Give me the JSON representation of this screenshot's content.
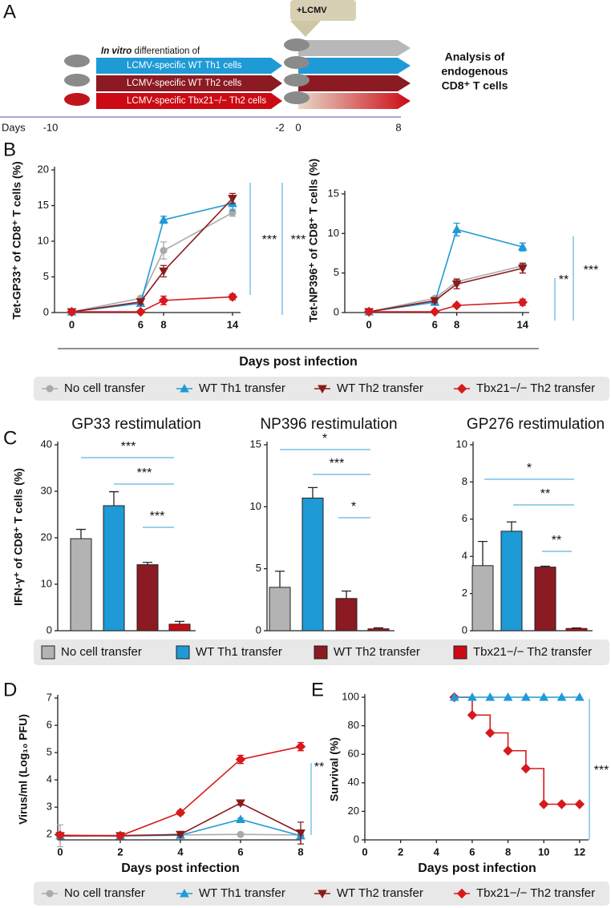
{
  "panel_labels": {
    "a": "A",
    "b": "B",
    "c": "C",
    "d": "D",
    "e": "E"
  },
  "schematic": {
    "infection": "+LCMV",
    "heading_italic": "In vitro",
    "heading": "differentiation of",
    "groups": [
      "LCMV-specific WT Th1 cells",
      "LCMV-specific WT Th2 cells",
      "LCMV-specific Tbx21−/− Th2 cells"
    ],
    "analysis": [
      "Analysis of",
      "endogenous",
      "CD8⁺ T cells"
    ],
    "days_label": "Days",
    "days": [
      -10,
      -2,
      0,
      8
    ]
  },
  "legend_c": {
    "names": [
      "No cell transfer",
      "WT Th1 transfer",
      "WT Th2 transfer",
      "Tbx21−/− Th2 transfer"
    ],
    "colors": [
      "#b3b3b3",
      "#1e9ad6",
      "#8b1a22",
      "#cc0a14"
    ]
  },
  "chart_data": [
    {
      "type": "line",
      "ylabel": "Tet-GP33⁺ of CD8⁺ T cells (%)",
      "xlabel": "Days post infection",
      "x": [
        0,
        6,
        8,
        14
      ],
      "xlim": [
        -1.5,
        14.7
      ],
      "xticks": [
        0,
        6,
        8,
        14
      ],
      "ylim": [
        0,
        20
      ],
      "yticks": [
        0,
        5,
        10,
        15,
        20
      ],
      "annotations": [
        "***",
        "***"
      ],
      "series": [
        {
          "name": "No cell transfer",
          "color": "#aaaaaa",
          "marker": "circle",
          "values": [
            0.1,
            2.0,
            8.7,
            14.0
          ],
          "errors": [
            0.05,
            0.3,
            1.2,
            0.5
          ]
        },
        {
          "name": "WT Th1 transfer",
          "color": "#1f9ad6",
          "marker": "triangle-up",
          "values": [
            0.1,
            1.3,
            13.0,
            15.3
          ],
          "errors": [
            0.05,
            0.3,
            0.5,
            1.0
          ]
        },
        {
          "name": "WT Th2 transfer",
          "color": "#8b1a1a",
          "marker": "triangle-down",
          "values": [
            0.1,
            1.5,
            5.8,
            16.0
          ],
          "errors": [
            0.05,
            0.3,
            0.8,
            0.7
          ]
        },
        {
          "name": "Tbx21−/− Th2 transfer",
          "color": "#d7191c",
          "marker": "diamond",
          "values": [
            0.1,
            0.1,
            1.7,
            2.2
          ],
          "errors": [
            0.05,
            0.1,
            0.6,
            0.4
          ]
        }
      ]
    },
    {
      "type": "line",
      "ylabel": "Tet-NP396⁺ of CD8⁺ T cells (%)",
      "x": [
        0,
        6,
        8,
        14
      ],
      "xlim": [
        -2.2,
        14.6
      ],
      "xticks": [
        0,
        6,
        8,
        14
      ],
      "ylim": [
        0,
        15
      ],
      "yticks": [
        0,
        5,
        10,
        15
      ],
      "annotations": [
        "**",
        "***"
      ],
      "series": [
        {
          "color": "#aaaaaa",
          "marker": "circle",
          "values": [
            0.1,
            1.8,
            3.9,
            5.9
          ],
          "errors": [
            0.05,
            0.2,
            0.4,
            0.4
          ]
        },
        {
          "color": "#1f9ad6",
          "marker": "triangle-up",
          "values": [
            0.1,
            1.3,
            10.5,
            8.3
          ],
          "errors": [
            0.05,
            0.2,
            0.8,
            0.5
          ]
        },
        {
          "color": "#8b1a1a",
          "marker": "triangle-down",
          "values": [
            0.1,
            1.5,
            3.6,
            5.6
          ],
          "errors": [
            0.05,
            0.2,
            0.6,
            0.6
          ]
        },
        {
          "color": "#d7191c",
          "marker": "diamond",
          "values": [
            0.1,
            0.1,
            0.9,
            1.3
          ],
          "errors": [
            0.05,
            0.05,
            0.2,
            0.4
          ]
        }
      ]
    },
    {
      "type": "bar",
      "title": "GP33 restimulation",
      "ylabel": "IFN-γ⁺ of CD8⁺ T cells (%)",
      "categories": [
        null,
        null,
        null,
        null
      ],
      "values": [
        19.8,
        26.9,
        14.2,
        1.4
      ],
      "errors": [
        2.0,
        3.0,
        0.5,
        0.6
      ],
      "colors": [
        "#b3b3b3",
        "#1e9ad6",
        "#8b1a22",
        "#cc0a14"
      ],
      "ylim": [
        0,
        40
      ],
      "yticks": [
        0,
        10,
        20,
        30,
        40
      ],
      "annotations": [
        "***",
        "***",
        "***"
      ]
    },
    {
      "type": "bar",
      "title": "NP396 restimulation",
      "categories": [
        null,
        null,
        null,
        null
      ],
      "values": [
        3.5,
        10.7,
        2.6,
        0.15
      ],
      "errors": [
        1.3,
        0.85,
        0.6,
        0.08
      ],
      "colors": [
        "#b3b3b3",
        "#1e9ad6",
        "#8b1a22",
        "#cc0a14"
      ],
      "ylim": [
        0,
        15
      ],
      "yticks": [
        0,
        5,
        10,
        15
      ],
      "annotations": [
        "*",
        "***",
        "*"
      ]
    },
    {
      "type": "bar",
      "title": "GP276 restimulation",
      "categories": [
        null,
        null,
        null,
        null
      ],
      "values": [
        3.5,
        5.35,
        3.42,
        0.12
      ],
      "errors": [
        1.3,
        0.5,
        0.05,
        0.03
      ],
      "colors": [
        "#b3b3b3",
        "#1e9ad6",
        "#8b1a22",
        "#cc0a14"
      ],
      "ylim": [
        0,
        10
      ],
      "yticks": [
        0,
        2,
        4,
        6,
        8,
        10
      ],
      "annotations": [
        "*",
        "**",
        "**"
      ]
    },
    {
      "type": "line",
      "ylabel": "Virus/ml (Log₁₀ PFU)",
      "xlabel": "Days post infection",
      "x": [
        0,
        2,
        4,
        6,
        8
      ],
      "xlim": [
        0,
        8
      ],
      "xticks": [
        0,
        2,
        4,
        6,
        8
      ],
      "ylim": [
        1.8,
        7
      ],
      "yticks": [
        2,
        3,
        4,
        5,
        6,
        7
      ],
      "annotations": [
        "**"
      ],
      "series": [
        {
          "name": "No cell transfer",
          "color": "#aaaaaa",
          "marker": "circle",
          "values": [
            1.95,
            1.97,
            1.98,
            2.0,
            1.98
          ],
          "errors": [
            0.4,
            0.02,
            0.02,
            0.02,
            0.02
          ]
        },
        {
          "name": "WT Th1 transfer",
          "color": "#1f9ad6",
          "marker": "triangle-up",
          "values": [
            1.95,
            1.95,
            1.97,
            2.55,
            1.95
          ],
          "errors": [
            0.02,
            0.02,
            0.02,
            0.05,
            0.02
          ]
        },
        {
          "name": "WT Th2 transfer",
          "color": "#8b1a1a",
          "marker": "triangle-down",
          "values": [
            1.95,
            1.95,
            2.0,
            3.15,
            2.05
          ],
          "errors": [
            0.02,
            0.02,
            0.05,
            0.08,
            0.4
          ]
        },
        {
          "name": "Tbx21−/− Th2 transfer",
          "color": "#d7191c",
          "marker": "diamond",
          "values": [
            1.97,
            1.95,
            2.8,
            4.75,
            5.22
          ],
          "errors": [
            0.02,
            0.02,
            0.08,
            0.15,
            0.15
          ]
        }
      ]
    },
    {
      "type": "line",
      "step": true,
      "ylabel": "Survival (%)",
      "xlabel": "Days post infection",
      "x": [
        5,
        6,
        7,
        8,
        9,
        10,
        11,
        12
      ],
      "xlim": [
        0,
        12.5
      ],
      "xticks": [
        0,
        2,
        4,
        6,
        8,
        10,
        12
      ],
      "ylim": [
        0,
        100
      ],
      "yticks": [
        0,
        20,
        40,
        60,
        80,
        100
      ],
      "annotations": [
        "***"
      ],
      "series": [
        {
          "color": "#d7191c",
          "marker": "diamond",
          "values": [
            100,
            87.5,
            75,
            62.5,
            50,
            25,
            25,
            25
          ]
        },
        {
          "color": "#1f9ad6",
          "marker": "triangle-up",
          "values": [
            100,
            100,
            100,
            100,
            100,
            100,
            100,
            100
          ]
        }
      ]
    }
  ]
}
